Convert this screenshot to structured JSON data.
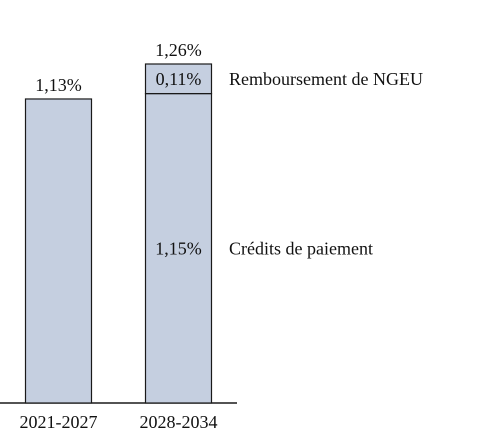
{
  "chart_data": {
    "type": "bar",
    "stacked": true,
    "categories": [
      "2021-2027",
      "2028-2034"
    ],
    "series": [
      {
        "name": "Crédits de paiement",
        "values": [
          1.13,
          1.15
        ],
        "value_labels": [
          "",
          "1,15%"
        ]
      },
      {
        "name": "Remboursement de NGEU",
        "values": [
          0,
          0.11
        ],
        "value_labels": [
          "",
          "0,11%"
        ]
      }
    ],
    "totals": [
      1.13,
      1.26
    ],
    "total_labels": [
      "1,13%",
      "1,26%"
    ],
    "ylim": [
      0,
      1.26
    ],
    "legend_position": "right, beside the segments",
    "colors": {
      "bar_fill": "#c5cfe0",
      "bar_stroke": "#1a1a1a",
      "axis": "#1a1a1a"
    }
  }
}
